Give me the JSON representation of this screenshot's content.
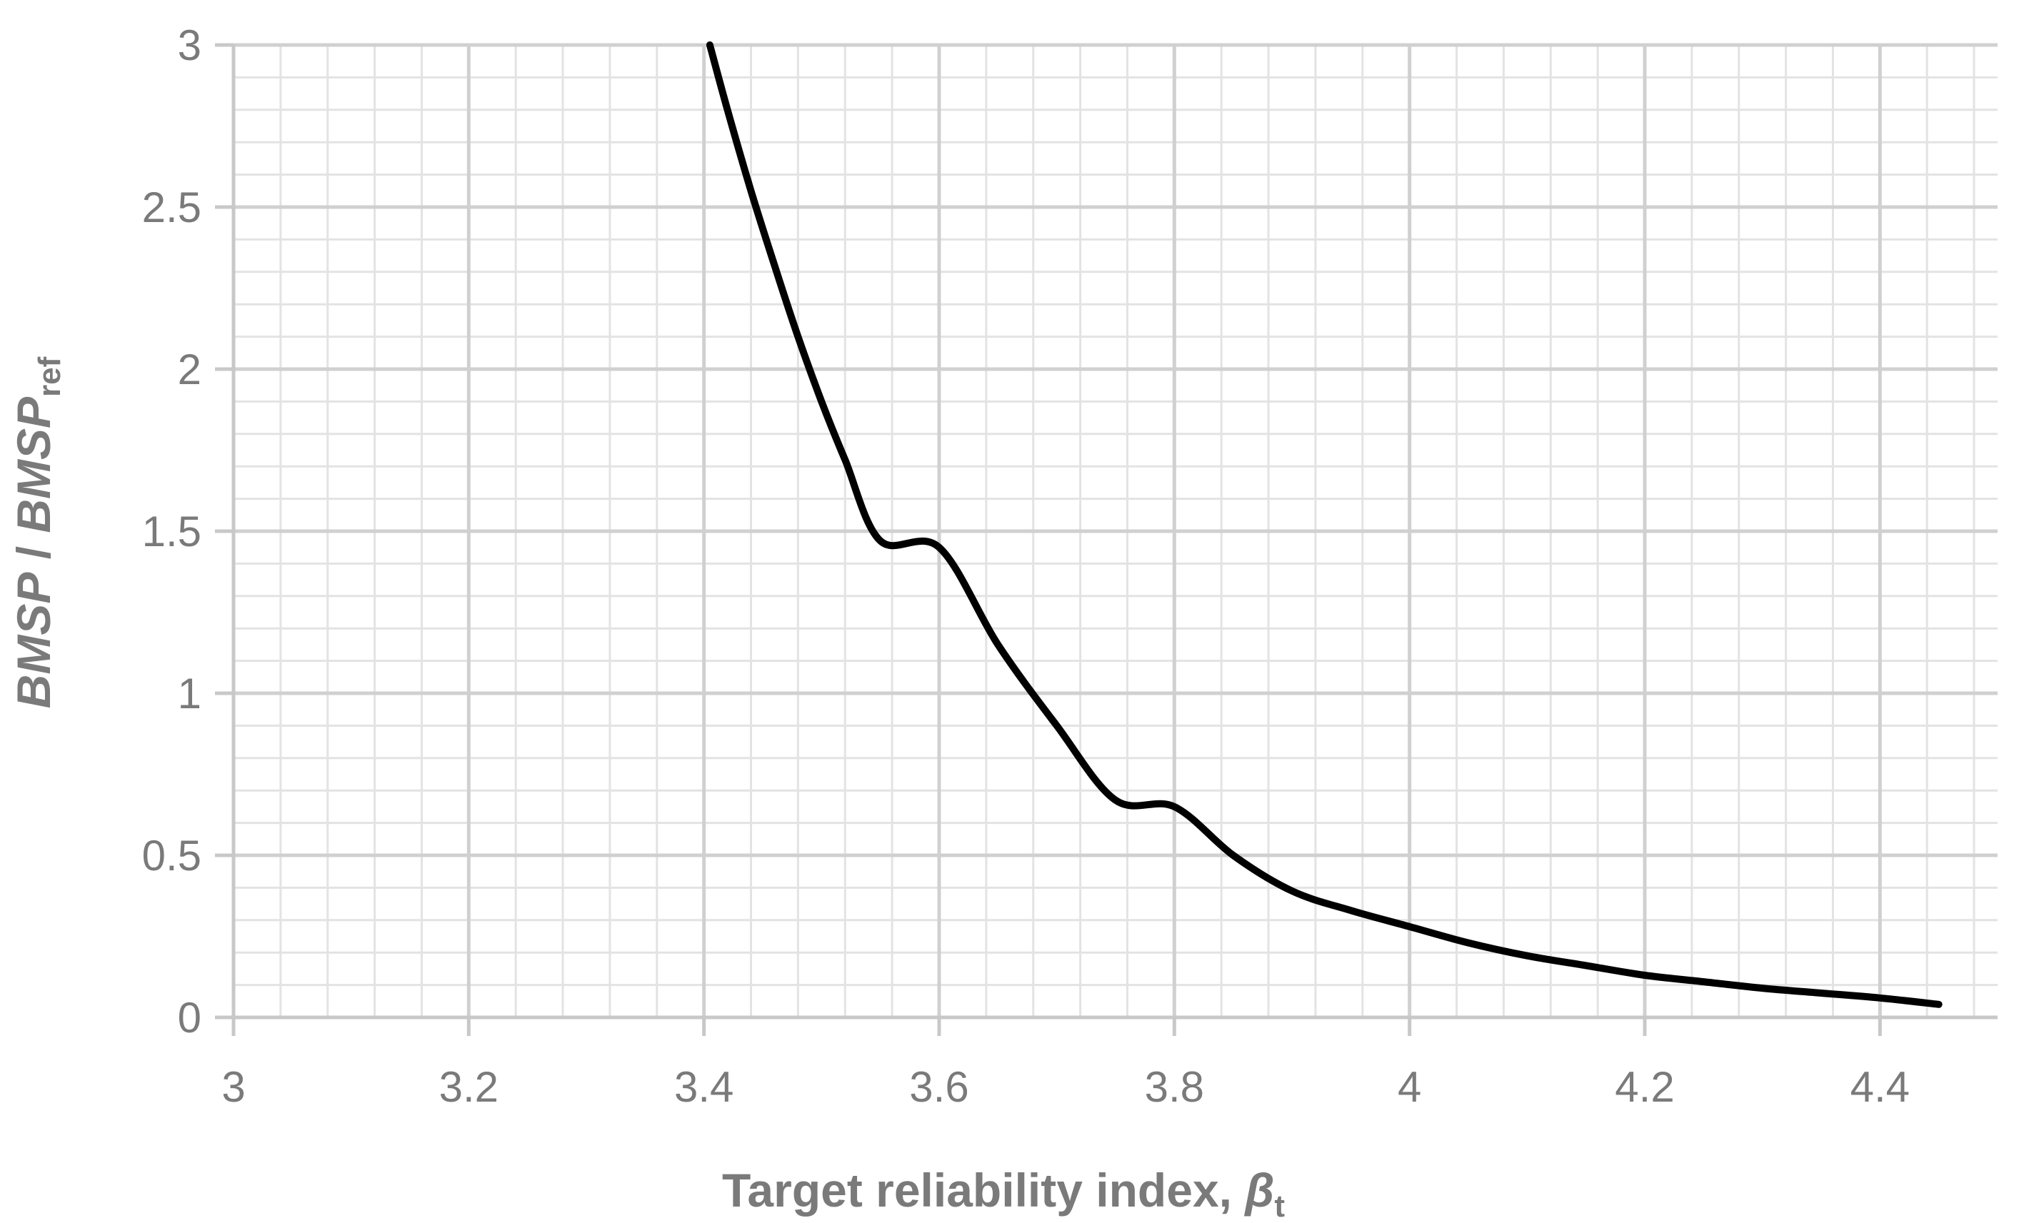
{
  "chart_data": {
    "type": "line",
    "xlabel": {
      "main": "Target reliability index, ",
      "symbol": "β",
      "subscript": "t"
    },
    "ylabel": {
      "part1": "BMSP",
      "separator": " / ",
      "part2": "BMSP",
      "subscript": "ref"
    },
    "xlim": [
      3,
      4.5
    ],
    "ylim": [
      0,
      3
    ],
    "x_ticks": [
      3,
      3.2,
      3.4,
      3.6,
      3.8,
      4,
      4.2,
      4.4
    ],
    "x_tick_labels": [
      "3",
      "3.2",
      "3.4",
      "3.6",
      "3.8",
      "4",
      "4.2",
      "4.4"
    ],
    "y_ticks": [
      0,
      0.5,
      1,
      1.5,
      2,
      2.5,
      3
    ],
    "y_tick_labels": [
      "0",
      "0.5",
      "1",
      "1.5",
      "2",
      "2.5",
      "3"
    ],
    "grid": {
      "major": true,
      "minor": true,
      "x_minor_step": 0.04,
      "y_minor_step": 0.1
    },
    "legend": "none",
    "series": [
      {
        "color": "#000000",
        "x": [
          3.405,
          3.42,
          3.44,
          3.46,
          3.48,
          3.5,
          3.52,
          3.55,
          3.6,
          3.65,
          3.7,
          3.75,
          3.8,
          3.85,
          3.9,
          3.95,
          4.0,
          4.05,
          4.1,
          4.15,
          4.2,
          4.25,
          4.3,
          4.35,
          4.4,
          4.45
        ],
        "y": [
          3.0,
          2.8,
          2.55,
          2.32,
          2.1,
          1.9,
          1.72,
          1.47,
          1.45,
          1.15,
          0.9,
          0.67,
          0.65,
          0.5,
          0.39,
          0.33,
          0.28,
          0.23,
          0.19,
          0.16,
          0.13,
          0.11,
          0.09,
          0.075,
          0.06,
          0.04
        ]
      }
    ]
  }
}
